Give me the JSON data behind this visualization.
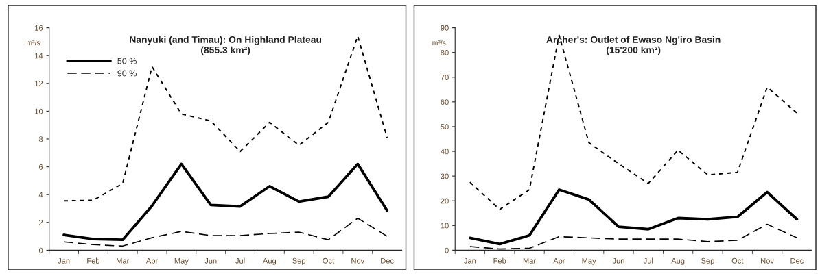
{
  "chart_data": [
    {
      "type": "line",
      "title": "Nanyuki (and Timau): On Highland Plateau\n(855.3 km²)",
      "ylabel": "m³/s",
      "categories": [
        "Jan",
        "Feb",
        "Mar",
        "Apr",
        "May",
        "Jun",
        "Jul",
        "Aug",
        "Sep",
        "Oct",
        "Nov",
        "Dec"
      ],
      "ylim": [
        0,
        16
      ],
      "yticks": [
        0,
        2,
        4,
        6,
        8,
        10,
        12,
        14,
        16
      ],
      "grid": false,
      "legend": "top left",
      "marker": "none",
      "series": [
        {
          "color": "#000000",
          "line_style": "dotted",
          "values": [
            3.55,
            3.6,
            4.8,
            13.2,
            9.8,
            9.3,
            7.1,
            9.2,
            7.55,
            9.2,
            15.4,
            8.1
          ]
        },
        {
          "name": "50 %",
          "color": "#000000",
          "line_style": "solid",
          "values": [
            1.1,
            0.8,
            0.75,
            3.2,
            6.2,
            3.25,
            3.15,
            4.6,
            3.5,
            3.85,
            6.2,
            2.85
          ]
        },
        {
          "name": "90 %",
          "color": "#000000",
          "line_style": "dashed",
          "values": [
            0.6,
            0.4,
            0.3,
            0.9,
            1.35,
            1.05,
            1.05,
            1.2,
            1.3,
            0.75,
            2.3,
            1.0
          ]
        }
      ]
    },
    {
      "type": "line",
      "title": "Archer's: Outlet of Ewaso Ng'iro Basin\n(15'200 km²)",
      "ylabel": "m³/s",
      "categories": [
        "Jan",
        "Feb",
        "Mar",
        "Apr",
        "May",
        "Jun",
        "Jul",
        "Aug",
        "Sep",
        "Oct",
        "Nov",
        "Dec"
      ],
      "ylim": [
        0,
        90
      ],
      "yticks": [
        0,
        10,
        20,
        30,
        40,
        50,
        60,
        70,
        80,
        90
      ],
      "grid": false,
      "legend": false,
      "marker": "none",
      "series": [
        {
          "color": "#000000",
          "line_style": "dotted",
          "values": [
            27.5,
            16.5,
            24.5,
            87,
            43.5,
            35,
            27,
            40.5,
            30.5,
            31.5,
            66,
            55.5
          ]
        },
        {
          "color": "#000000",
          "line_style": "solid",
          "values": [
            5,
            2.5,
            6,
            24.5,
            20.5,
            9.5,
            8.5,
            13,
            12.5,
            13.5,
            23.5,
            12.5
          ]
        },
        {
          "color": "#000000",
          "line_style": "dashed",
          "values": [
            1.5,
            0.5,
            0.8,
            5.5,
            5,
            4.5,
            4.5,
            4.5,
            3.5,
            4,
            10.5,
            5
          ]
        }
      ]
    }
  ]
}
